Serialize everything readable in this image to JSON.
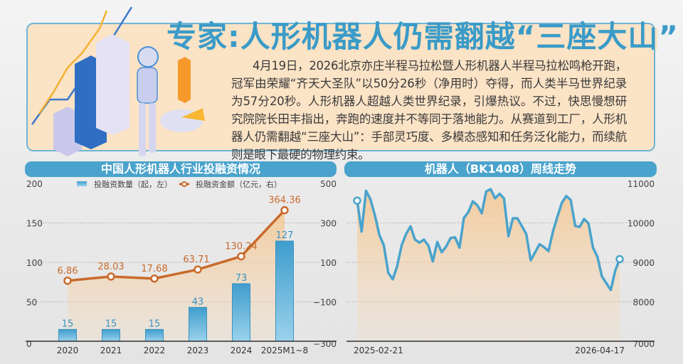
{
  "headline": "专家:人形机器人仍需翻越“三座大山”",
  "intro": "4月19日，2026北京亦庄半程马拉松暨人形机器人半程马拉松鸣枪开跑，冠军由荣耀“齐天大圣队”以50分26秒（净用时）夺得，而人类半马世界纪录为57分20秒。人形机器人超越人类世界纪录，引爆热议。不过，快思慢想研究院院长田丰指出，奔跑的速度并不等同于落地能力。从赛道到工厂，人形机器人仍需翻越“三座大山”：手部灵巧度、多模态感知和任务泛化能力，而续航则是眼下最硬的物理约束。",
  "colors": {
    "accent": "#4aa3cc",
    "line": "#c96a2c",
    "bar": "#5bb0d8",
    "area": "#f6cc98"
  },
  "chart_data": [
    {
      "type": "bar+line",
      "title": "中国人形机器人行业投融资情况",
      "categories": [
        "2020",
        "2021",
        "2022",
        "2023",
        "2024",
        "2025M1~8"
      ],
      "series": [
        {
          "name": "投融资数量（起，左）",
          "type": "bar",
          "axis": "left",
          "values": [
            15,
            15,
            15,
            43,
            73,
            127
          ],
          "labels": [
            "15",
            "15",
            "15",
            "43",
            "73",
            "127"
          ]
        },
        {
          "name": "投融资金额（亿元，右）",
          "type": "line",
          "axis": "right",
          "values": [
            6.86,
            28.03,
            17.68,
            63.71,
            130.24,
            364.36
          ],
          "labels": [
            "6.86",
            "28.03",
            "17.68",
            "63.71",
            "130.24",
            "364.36"
          ]
        }
      ],
      "left_axis": {
        "ylim": [
          0,
          200
        ],
        "ticks": [
          "0",
          "50",
          "100",
          "150",
          "200"
        ]
      },
      "right_axis": {
        "ylim": [
          -300,
          500
        ],
        "ticks": [
          "−300",
          "−100",
          "100",
          "300",
          "500"
        ]
      },
      "grid": true,
      "legend": "top"
    },
    {
      "type": "line",
      "title": "机器人（BK1408）周线走势",
      "x_start": "2025-02-21",
      "x_end": "2026-04-17",
      "x_ticks": [
        "2025-02-21",
        "2026-04-17"
      ],
      "values": [
        10564,
        9779,
        10814,
        10593,
        10186,
        9692,
        9430,
        8733,
        8570,
        8907,
        9430,
        9721,
        9913,
        9576,
        9500,
        9576,
        9430,
        9023,
        9517,
        9256,
        9401,
        9616,
        9634,
        9372,
        10128,
        10273,
        10547,
        10448,
        10244,
        10797,
        10855,
        10622,
        10738,
        10622,
        9663,
        10116,
        10116,
        9924,
        9721,
        9052,
        9256,
        9459,
        9384,
        9285,
        9779,
        10157,
        10506,
        10680,
        10581,
        9924,
        9895,
        10099,
        9983,
        9372,
        9140,
        8645,
        8471,
        8297,
        8791,
        9081
      ],
      "ylim": [
        7000,
        11000
      ],
      "y_ticks": [
        "7000",
        "8000",
        "9000",
        "10000",
        "11000"
      ],
      "grid": true
    }
  ]
}
